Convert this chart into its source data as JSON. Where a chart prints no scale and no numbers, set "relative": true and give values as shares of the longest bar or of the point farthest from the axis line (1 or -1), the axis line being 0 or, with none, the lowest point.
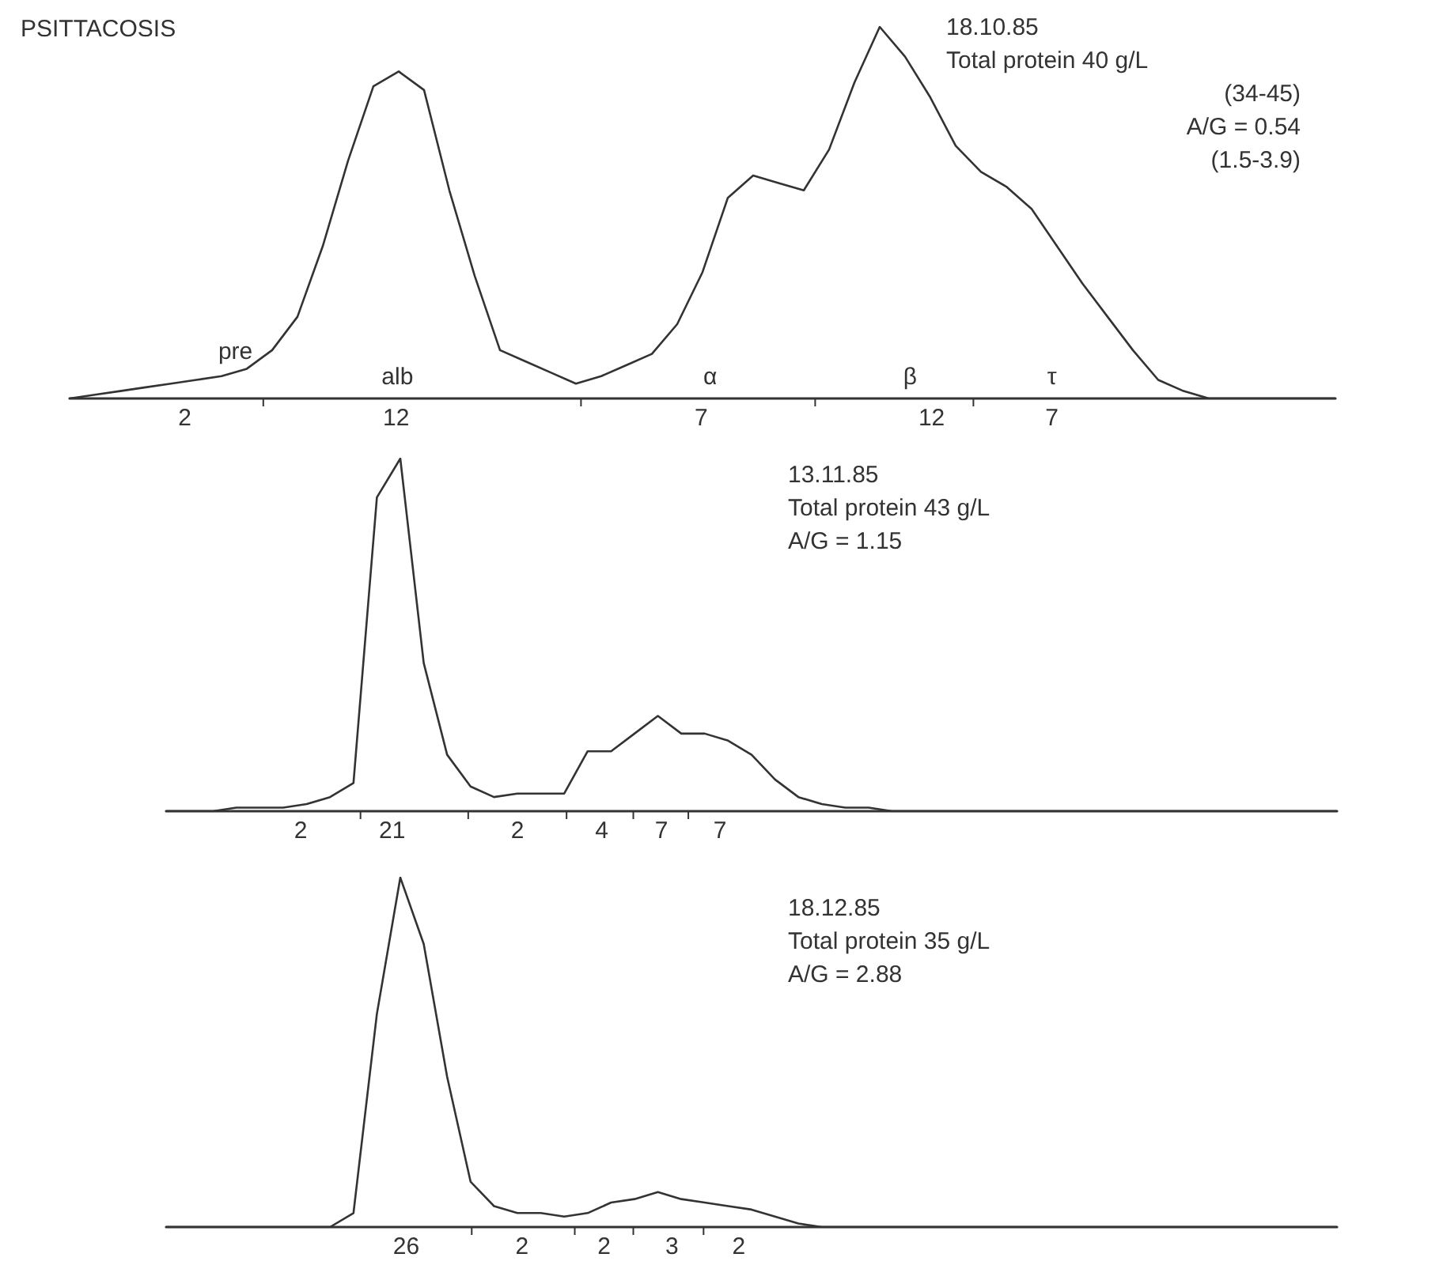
{
  "chart_data": [
    {
      "type": "line",
      "title": "PSITTACOSIS",
      "relative": true,
      "color": "#333333",
      "marker": "none",
      "line_style": "solid",
      "categories": [
        null,
        null,
        null,
        null,
        null,
        null,
        null,
        null,
        null,
        null,
        null,
        null,
        null,
        null,
        null,
        null,
        null,
        null,
        null,
        null,
        null,
        null,
        null,
        null,
        null,
        null,
        null,
        null,
        null,
        null,
        null,
        null,
        null,
        null,
        null,
        null,
        null,
        null,
        null,
        null,
        null,
        null,
        null,
        null,
        null,
        null,
        null,
        null,
        null,
        null,
        null
      ],
      "values": [
        0,
        0.01,
        0.02,
        0.03,
        0.04,
        0.05,
        0.06,
        0.08,
        0.13,
        0.22,
        0.41,
        0.64,
        0.84,
        0.88,
        0.83,
        0.56,
        0.33,
        0.13,
        0.1,
        0.07,
        0.04,
        0.06,
        0.09,
        0.12,
        0.2,
        0.34,
        0.54,
        0.6,
        0.58,
        0.56,
        0.67,
        0.85,
        1,
        0.92,
        0.81,
        0.68,
        0.61,
        0.57,
        0.51,
        0.41,
        0.31,
        0.22,
        0.13,
        0.05,
        0.02,
        0,
        0,
        0,
        0,
        0,
        0
      ],
      "annotations": [
        "18.10.85",
        "Total protein 40 g/L",
        "(34-45)",
        "A/G = 0.54",
        "(1.5-3.9)",
        "pre",
        "alb",
        "α",
        "β",
        "τ",
        "2",
        "12",
        "7",
        "12",
        "7"
      ]
    },
    {
      "type": "line",
      "relative": true,
      "color": "#333333",
      "marker": "none",
      "line_style": "solid",
      "categories": [
        null,
        null,
        null,
        null,
        null,
        null,
        null,
        null,
        null,
        null,
        null,
        null,
        null,
        null,
        null,
        null,
        null,
        null,
        null,
        null,
        null,
        null,
        null,
        null,
        null,
        null,
        null,
        null,
        null,
        null,
        null,
        null,
        null,
        null,
        null,
        null,
        null,
        null,
        null,
        null,
        null,
        null,
        null,
        null,
        null,
        null,
        null,
        null,
        null,
        null,
        null
      ],
      "values": [
        0,
        0,
        0,
        0.01,
        0.01,
        0.01,
        0.02,
        0.04,
        0.08,
        0.89,
        1,
        0.42,
        0.16,
        0.07,
        0.04,
        0.05,
        0.05,
        0.05,
        0.17,
        0.17,
        0.22,
        0.27,
        0.22,
        0.22,
        0.2,
        0.16,
        0.09,
        0.04,
        0.02,
        0.01,
        0.01,
        0,
        0,
        0,
        0,
        0,
        0,
        0,
        0,
        0,
        0,
        0,
        0,
        0,
        0,
        0,
        0,
        0,
        0,
        0,
        0
      ],
      "annotations": [
        "13.11.85",
        "Total protein 43 g/L",
        "A/G = 1.15",
        "2",
        "21",
        "2",
        "4",
        "7",
        "7"
      ]
    },
    {
      "type": "line",
      "relative": true,
      "color": "#333333",
      "marker": "none",
      "line_style": "solid",
      "categories": [
        null,
        null,
        null,
        null,
        null,
        null,
        null,
        null,
        null,
        null,
        null,
        null,
        null,
        null,
        null,
        null,
        null,
        null,
        null,
        null,
        null,
        null,
        null,
        null,
        null,
        null,
        null,
        null,
        null,
        null,
        null,
        null,
        null,
        null,
        null,
        null,
        null,
        null,
        null,
        null,
        null,
        null,
        null,
        null,
        null,
        null,
        null,
        null,
        null,
        null,
        null
      ],
      "values": [
        0,
        0,
        0,
        0,
        0,
        0,
        0,
        0,
        0.04,
        0.61,
        1,
        0.81,
        0.43,
        0.13,
        0.06,
        0.04,
        0.04,
        0.03,
        0.04,
        0.07,
        0.08,
        0.1,
        0.08,
        0.07,
        0.06,
        0.05,
        0.03,
        0.01,
        0,
        0,
        0,
        0,
        0,
        0,
        0,
        0,
        0,
        0,
        0,
        0,
        0,
        0,
        0,
        0,
        0,
        0,
        0,
        0,
        0,
        0,
        0
      ],
      "annotations": [
        "18.12.85",
        "Total protein 35 g/L",
        "A/G = 2.88",
        "26",
        "2",
        "2",
        "3",
        "2"
      ]
    }
  ]
}
